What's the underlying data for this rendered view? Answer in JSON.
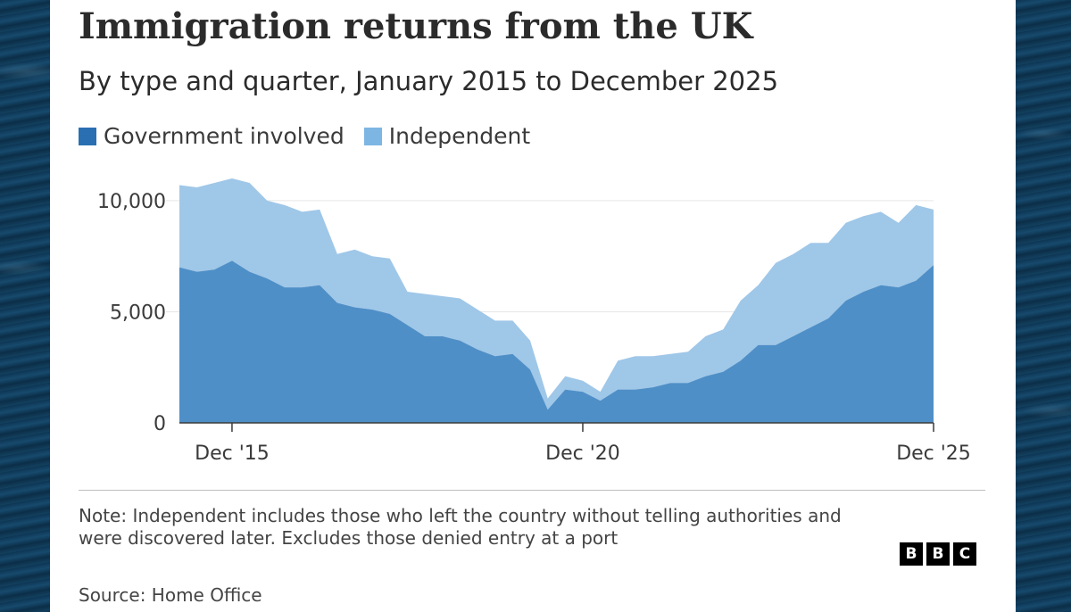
{
  "page": {
    "title": "Immigration returns from the UK",
    "subtitle": "By type and quarter, January 2015 to December 2025",
    "note": "Note: Independent includes those who left the country without telling authorities and were discovered later. Excludes those denied entry at a port",
    "source": "Source: Home Office",
    "logo_letters": [
      "B",
      "B",
      "C"
    ]
  },
  "colors": {
    "government": "#4f8fc7",
    "independent": "#9fc7e8",
    "government_legend": "#2a6fb2",
    "independent_legend": "#7db6e3",
    "gridline": "#e6e6e6",
    "axis": "#3a3a3a"
  },
  "chart_data": {
    "type": "area",
    "stacked": true,
    "title": "Immigration returns from the UK",
    "subtitle": "By type and quarter, January 2015 to December 2025",
    "x_unit": "quarter",
    "x": [
      "2015 Q1",
      "2015 Q2",
      "2015 Q3",
      "2015 Q4",
      "2016 Q1",
      "2016 Q2",
      "2016 Q3",
      "2016 Q4",
      "2017 Q1",
      "2017 Q2",
      "2017 Q3",
      "2017 Q4",
      "2018 Q1",
      "2018 Q2",
      "2018 Q3",
      "2018 Q4",
      "2019 Q1",
      "2019 Q2",
      "2019 Q3",
      "2019 Q4",
      "2020 Q1",
      "2020 Q2",
      "2020 Q3",
      "2020 Q4",
      "2021 Q1",
      "2021 Q2",
      "2021 Q3",
      "2021 Q4",
      "2022 Q1",
      "2022 Q2",
      "2022 Q3",
      "2022 Q4",
      "2023 Q1",
      "2023 Q2",
      "2023 Q3",
      "2023 Q4",
      "2024 Q1",
      "2024 Q2",
      "2024 Q3",
      "2024 Q4",
      "2025 Q1",
      "2025 Q2",
      "2025 Q3",
      "2025 Q4"
    ],
    "xticks": [
      {
        "label": "Dec '15",
        "index": 3
      },
      {
        "label": "Dec '20",
        "index": 23
      },
      {
        "label": "Dec '25",
        "index": 43
      }
    ],
    "series": [
      {
        "name": "Government involved",
        "values": [
          7000,
          6800,
          6900,
          7300,
          6800,
          6500,
          6100,
          6100,
          6200,
          5400,
          5200,
          5100,
          4900,
          4400,
          3900,
          3900,
          3700,
          3300,
          3000,
          3100,
          2400,
          600,
          1500,
          1400,
          1000,
          1500,
          1500,
          1600,
          1800,
          1800,
          2100,
          2300,
          2800,
          3500,
          3500,
          3900,
          4300,
          4700,
          5500,
          5900,
          6200,
          6100,
          6400,
          7100
        ]
      },
      {
        "name": "Independent",
        "values": [
          3700,
          3800,
          3900,
          3700,
          4000,
          3500,
          3700,
          3400,
          3400,
          2200,
          2600,
          2400,
          2500,
          1500,
          1900,
          1800,
          1900,
          1800,
          1600,
          1500,
          1300,
          500,
          600,
          500,
          400,
          1300,
          1500,
          1400,
          1300,
          1400,
          1800,
          1900,
          2700,
          2700,
          3700,
          3700,
          3800,
          3400,
          3500,
          3400,
          3300,
          2900,
          3400,
          2500
        ]
      }
    ],
    "y_ticks": [
      0,
      5000,
      10000
    ],
    "y_tick_labels": [
      "0",
      "5,000",
      "10,000"
    ],
    "ylim": [
      0,
      11000
    ],
    "grid": true,
    "legend_position": "top-left",
    "xlabel": "",
    "ylabel": ""
  }
}
